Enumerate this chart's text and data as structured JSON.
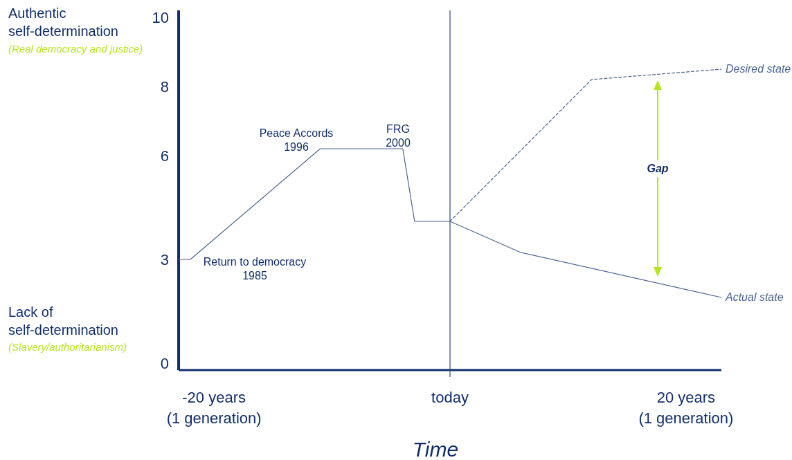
{
  "chart_data": {
    "type": "line",
    "xlabel": "Time",
    "categories": [
      null,
      null,
      null,
      "-20 years\n(1 generation)",
      null,
      null,
      null,
      null,
      null,
      null,
      null,
      null,
      null,
      null,
      null,
      null,
      null,
      null,
      null,
      null,
      null,
      null,
      null,
      "today",
      null,
      null,
      null,
      null,
      null,
      null,
      null,
      null,
      null,
      null,
      null,
      null,
      null,
      null,
      null,
      null,
      null,
      null,
      null,
      "20 years\n(1 generation)",
      null,
      null,
      null
    ],
    "series": [
      {
        "name": "Actual state",
        "color": "#4a6491",
        "values": [
          3,
          3,
          null,
          null,
          null,
          null,
          null,
          null,
          null,
          null,
          null,
          null,
          6.2,
          null,
          null,
          null,
          null,
          null,
          null,
          6.2,
          4.1,
          null,
          null,
          4.1,
          null,
          null,
          null,
          null,
          null,
          3.2,
          null,
          null,
          null,
          null,
          null,
          null,
          null,
          null,
          null,
          null,
          null,
          null,
          null,
          null,
          null,
          null,
          1.9
        ]
      },
      {
        "name": "Desired state",
        "color": "#4a6491",
        "line_style": "dashed",
        "values": [
          null,
          null,
          null,
          null,
          null,
          null,
          null,
          null,
          null,
          null,
          null,
          null,
          null,
          null,
          null,
          null,
          null,
          null,
          null,
          null,
          null,
          null,
          null,
          4.1,
          null,
          null,
          null,
          null,
          null,
          null,
          null,
          null,
          null,
          null,
          null,
          8.2,
          null,
          null,
          null,
          null,
          null,
          null,
          null,
          null,
          null,
          null,
          8.5
        ]
      }
    ],
    "ylim": [
      -0.2,
      10.2
    ],
    "yticks": [
      0,
      3,
      6,
      8,
      10
    ],
    "ref_lines": [
      {
        "axis": "x",
        "value": "today",
        "color": "#2b4a7e"
      }
    ],
    "annotations": [
      "Authentic\nself-determination",
      "(Real democracy and justice)",
      "Lack of\nself-determination",
      "(Slavery/authoritarianism)",
      "Gap",
      "Peace Accords\n1996",
      "FRG\n2000",
      "Return to democracy\n1985"
    ],
    "grid": false,
    "marker": "none"
  }
}
